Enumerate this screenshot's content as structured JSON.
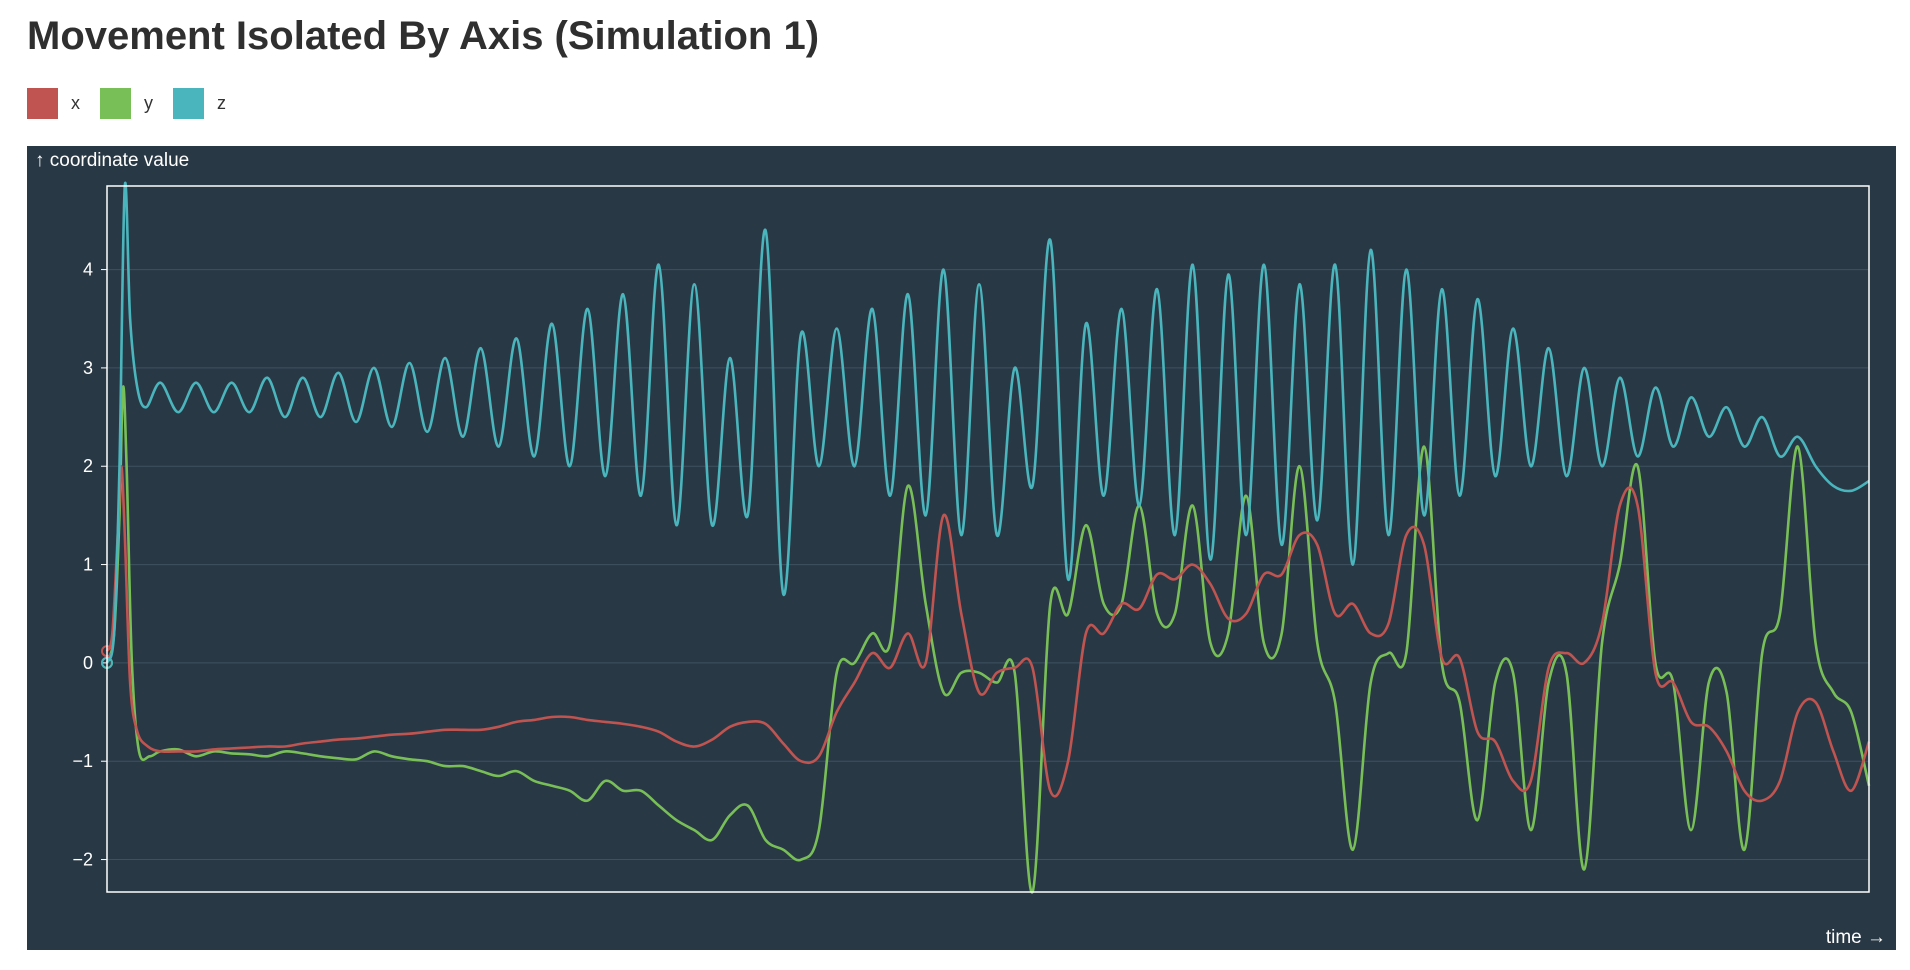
{
  "title": "Movement Isolated By Axis (Simulation 1)",
  "legend": [
    {
      "label": "x",
      "color": "#bf5451"
    },
    {
      "label": "y",
      "color": "#78bf58"
    },
    {
      "label": "z",
      "color": "#4ab5bc"
    }
  ],
  "chart_data": {
    "type": "line",
    "title": "Movement Isolated By Axis (Simulation 1)",
    "ylabel": "↑ coordinate value",
    "xlabel": "time →",
    "ylim": [
      -2.33,
      4.85
    ],
    "yticks": [
      -2,
      -1,
      0,
      1,
      2,
      3,
      4
    ],
    "ytick_labels": [
      "−2",
      "−1",
      "0",
      "1",
      "2",
      "3",
      "4"
    ],
    "grid": "horizontal",
    "background": "#293845",
    "series": [
      {
        "name": "x",
        "color": "#bf5451",
        "points": [
          [
            0,
            0.12
          ],
          [
            0.3,
            0.3
          ],
          [
            0.6,
            1.3
          ],
          [
            0.8,
            2.0
          ],
          [
            1.0,
            1.3
          ],
          [
            1.3,
            -0.2
          ],
          [
            1.7,
            -0.7
          ],
          [
            2.3,
            -0.85
          ],
          [
            3,
            -0.9
          ],
          [
            4,
            -0.9
          ],
          [
            5,
            -0.9
          ],
          [
            6,
            -0.88
          ],
          [
            7,
            -0.87
          ],
          [
            8,
            -0.86
          ],
          [
            9,
            -0.85
          ],
          [
            10,
            -0.85
          ],
          [
            11,
            -0.82
          ],
          [
            12,
            -0.8
          ],
          [
            13,
            -0.78
          ],
          [
            14,
            -0.77
          ],
          [
            15,
            -0.75
          ],
          [
            16,
            -0.73
          ],
          [
            17,
            -0.72
          ],
          [
            18,
            -0.7
          ],
          [
            19,
            -0.68
          ],
          [
            20,
            -0.68
          ],
          [
            21,
            -0.68
          ],
          [
            22,
            -0.65
          ],
          [
            23,
            -0.6
          ],
          [
            24,
            -0.58
          ],
          [
            25,
            -0.55
          ],
          [
            26,
            -0.55
          ],
          [
            27,
            -0.58
          ],
          [
            28,
            -0.6
          ],
          [
            29,
            -0.62
          ],
          [
            30,
            -0.65
          ],
          [
            31,
            -0.7
          ],
          [
            32,
            -0.8
          ],
          [
            33,
            -0.85
          ],
          [
            34,
            -0.78
          ],
          [
            35,
            -0.65
          ],
          [
            36,
            -0.6
          ],
          [
            37,
            -0.62
          ],
          [
            38,
            -0.82
          ],
          [
            39,
            -1.0
          ],
          [
            40,
            -0.95
          ],
          [
            41,
            -0.5
          ],
          [
            42,
            -0.2
          ],
          [
            43,
            0.1
          ],
          [
            44,
            -0.05
          ],
          [
            45,
            0.3
          ],
          [
            46,
            0.0
          ],
          [
            47,
            1.5
          ],
          [
            48,
            0.5
          ],
          [
            49,
            -0.3
          ],
          [
            50,
            -0.1
          ],
          [
            51,
            -0.05
          ],
          [
            52,
            -0.05
          ],
          [
            53,
            -1.3
          ],
          [
            54,
            -1.0
          ],
          [
            55,
            0.3
          ],
          [
            56,
            0.3
          ],
          [
            57,
            0.6
          ],
          [
            58,
            0.55
          ],
          [
            59,
            0.9
          ],
          [
            60,
            0.85
          ],
          [
            61,
            1.0
          ],
          [
            62,
            0.8
          ],
          [
            63,
            0.45
          ],
          [
            64,
            0.5
          ],
          [
            65,
            0.9
          ],
          [
            66,
            0.9
          ],
          [
            67,
            1.3
          ],
          [
            68,
            1.2
          ],
          [
            69,
            0.5
          ],
          [
            70,
            0.6
          ],
          [
            71,
            0.3
          ],
          [
            72,
            0.4
          ],
          [
            73,
            1.3
          ],
          [
            74,
            1.2
          ],
          [
            75,
            0.05
          ],
          [
            76,
            0.05
          ],
          [
            77,
            -0.7
          ],
          [
            78,
            -0.8
          ],
          [
            79,
            -1.2
          ],
          [
            80,
            -1.2
          ],
          [
            81,
            -0.05
          ],
          [
            82,
            0.1
          ],
          [
            83,
            0.0
          ],
          [
            84,
            0.4
          ],
          [
            85,
            1.6
          ],
          [
            86,
            1.6
          ],
          [
            87,
            -0.1
          ],
          [
            88,
            -0.2
          ],
          [
            89,
            -0.6
          ],
          [
            90,
            -0.65
          ],
          [
            91,
            -0.9
          ],
          [
            92,
            -1.3
          ],
          [
            93,
            -1.4
          ],
          [
            94,
            -1.2
          ],
          [
            95,
            -0.5
          ],
          [
            96,
            -0.4
          ],
          [
            97,
            -0.9
          ],
          [
            98,
            -1.3
          ],
          [
            99,
            -0.8
          ]
        ]
      },
      {
        "name": "y",
        "color": "#78bf58",
        "points": [
          [
            0,
            0.0
          ],
          [
            0.4,
            0.3
          ],
          [
            0.7,
            1.5
          ],
          [
            0.9,
            2.8
          ],
          [
            1.1,
            2.0
          ],
          [
            1.4,
            0.0
          ],
          [
            1.8,
            -0.9
          ],
          [
            2.4,
            -0.95
          ],
          [
            3,
            -0.9
          ],
          [
            4,
            -0.88
          ],
          [
            5,
            -0.95
          ],
          [
            6,
            -0.9
          ],
          [
            7,
            -0.92
          ],
          [
            8,
            -0.93
          ],
          [
            9,
            -0.95
          ],
          [
            10,
            -0.9
          ],
          [
            11,
            -0.92
          ],
          [
            12,
            -0.95
          ],
          [
            13,
            -0.97
          ],
          [
            14,
            -0.98
          ],
          [
            15,
            -0.9
          ],
          [
            16,
            -0.95
          ],
          [
            17,
            -0.98
          ],
          [
            18,
            -1.0
          ],
          [
            19,
            -1.05
          ],
          [
            20,
            -1.05
          ],
          [
            21,
            -1.1
          ],
          [
            22,
            -1.15
          ],
          [
            23,
            -1.1
          ],
          [
            24,
            -1.2
          ],
          [
            25,
            -1.25
          ],
          [
            26,
            -1.3
          ],
          [
            27,
            -1.4
          ],
          [
            28,
            -1.2
          ],
          [
            29,
            -1.3
          ],
          [
            30,
            -1.3
          ],
          [
            31,
            -1.45
          ],
          [
            32,
            -1.6
          ],
          [
            33,
            -1.7
          ],
          [
            34,
            -1.8
          ],
          [
            35,
            -1.55
          ],
          [
            36,
            -1.45
          ],
          [
            37,
            -1.8
          ],
          [
            38,
            -1.9
          ],
          [
            39,
            -2.0
          ],
          [
            40,
            -1.7
          ],
          [
            41,
            -0.1
          ],
          [
            42,
            0.0
          ],
          [
            43,
            0.3
          ],
          [
            44,
            0.2
          ],
          [
            45,
            1.8
          ],
          [
            46,
            0.6
          ],
          [
            47,
            -0.3
          ],
          [
            48,
            -0.1
          ],
          [
            49,
            -0.1
          ],
          [
            50,
            -0.2
          ],
          [
            51,
            -0.1
          ],
          [
            52,
            -2.33
          ],
          [
            53,
            0.6
          ],
          [
            54,
            0.5
          ],
          [
            55,
            1.4
          ],
          [
            56,
            0.6
          ],
          [
            57,
            0.6
          ],
          [
            58,
            1.6
          ],
          [
            59,
            0.5
          ],
          [
            60,
            0.5
          ],
          [
            61,
            1.6
          ],
          [
            62,
            0.2
          ],
          [
            63,
            0.3
          ],
          [
            64,
            1.7
          ],
          [
            65,
            0.2
          ],
          [
            66,
            0.3
          ],
          [
            67,
            2.0
          ],
          [
            68,
            0.2
          ],
          [
            69,
            -0.4
          ],
          [
            70,
            -1.9
          ],
          [
            71,
            -0.2
          ],
          [
            72,
            0.1
          ],
          [
            73,
            0.1
          ],
          [
            74,
            2.2
          ],
          [
            75,
            0.0
          ],
          [
            76,
            -0.4
          ],
          [
            77,
            -1.6
          ],
          [
            78,
            -0.2
          ],
          [
            79,
            -0.1
          ],
          [
            80,
            -1.7
          ],
          [
            81,
            -0.2
          ],
          [
            82,
            -0.1
          ],
          [
            83,
            -2.1
          ],
          [
            84,
            0.2
          ],
          [
            85,
            1.0
          ],
          [
            86,
            2.0
          ],
          [
            87,
            0.0
          ],
          [
            88,
            -0.2
          ],
          [
            89,
            -1.7
          ],
          [
            90,
            -0.2
          ],
          [
            91,
            -0.3
          ],
          [
            92,
            -1.9
          ],
          [
            93,
            0.1
          ],
          [
            94,
            0.5
          ],
          [
            95,
            2.2
          ],
          [
            96,
            0.2
          ],
          [
            97,
            -0.3
          ],
          [
            98,
            -0.5
          ],
          [
            99,
            -1.25
          ]
        ]
      },
      {
        "name": "z",
        "color": "#4ab5bc",
        "points": [
          [
            0,
            0.0
          ],
          [
            0.4,
            0.3
          ],
          [
            0.7,
            2.0
          ],
          [
            1.0,
            4.85
          ],
          [
            1.3,
            3.5
          ],
          [
            1.7,
            2.8
          ],
          [
            2.2,
            2.6
          ],
          [
            3,
            2.85
          ],
          [
            4,
            2.55
          ],
          [
            5,
            2.85
          ],
          [
            6,
            2.55
          ],
          [
            7,
            2.85
          ],
          [
            8,
            2.55
          ],
          [
            9,
            2.9
          ],
          [
            10,
            2.5
          ],
          [
            11,
            2.9
          ],
          [
            12,
            2.5
          ],
          [
            13,
            2.95
          ],
          [
            14,
            2.45
          ],
          [
            15,
            3.0
          ],
          [
            16,
            2.4
          ],
          [
            17,
            3.05
          ],
          [
            18,
            2.35
          ],
          [
            19,
            3.1
          ],
          [
            20,
            2.3
          ],
          [
            21,
            3.2
          ],
          [
            22,
            2.2
          ],
          [
            23,
            3.3
          ],
          [
            24,
            2.1
          ],
          [
            25,
            3.45
          ],
          [
            26,
            2.0
          ],
          [
            27,
            3.6
          ],
          [
            28,
            1.9
          ],
          [
            29,
            3.75
          ],
          [
            30,
            1.7
          ],
          [
            31,
            4.05
          ],
          [
            32,
            1.4
          ],
          [
            33,
            3.85
          ],
          [
            34,
            1.4
          ],
          [
            35,
            3.1
          ],
          [
            36,
            1.5
          ],
          [
            37,
            4.4
          ],
          [
            38,
            0.7
          ],
          [
            39,
            3.35
          ],
          [
            40,
            2.0
          ],
          [
            41,
            3.4
          ],
          [
            42,
            2.0
          ],
          [
            43,
            3.6
          ],
          [
            44,
            1.7
          ],
          [
            45,
            3.75
          ],
          [
            46,
            1.5
          ],
          [
            47,
            4.0
          ],
          [
            48,
            1.3
          ],
          [
            49,
            3.85
          ],
          [
            50,
            1.3
          ],
          [
            51,
            3.0
          ],
          [
            52,
            1.8
          ],
          [
            53,
            4.3
          ],
          [
            54,
            0.85
          ],
          [
            55,
            3.45
          ],
          [
            56,
            1.7
          ],
          [
            57,
            3.6
          ],
          [
            58,
            1.6
          ],
          [
            59,
            3.8
          ],
          [
            60,
            1.3
          ],
          [
            61,
            4.05
          ],
          [
            62,
            1.05
          ],
          [
            63,
            3.95
          ],
          [
            64,
            1.3
          ],
          [
            65,
            4.05
          ],
          [
            66,
            1.2
          ],
          [
            67,
            3.85
          ],
          [
            68,
            1.45
          ],
          [
            69,
            4.05
          ],
          [
            70,
            1.0
          ],
          [
            71,
            4.2
          ],
          [
            72,
            1.3
          ],
          [
            73,
            4.0
          ],
          [
            74,
            1.5
          ],
          [
            75,
            3.8
          ],
          [
            76,
            1.7
          ],
          [
            77,
            3.7
          ],
          [
            78,
            1.9
          ],
          [
            79,
            3.4
          ],
          [
            80,
            2.0
          ],
          [
            81,
            3.2
          ],
          [
            82,
            1.9
          ],
          [
            83,
            3.0
          ],
          [
            84,
            2.0
          ],
          [
            85,
            2.9
          ],
          [
            86,
            2.1
          ],
          [
            87,
            2.8
          ],
          [
            88,
            2.2
          ],
          [
            89,
            2.7
          ],
          [
            90,
            2.3
          ],
          [
            91,
            2.6
          ],
          [
            92,
            2.2
          ],
          [
            93,
            2.5
          ],
          [
            94,
            2.1
          ],
          [
            95,
            2.3
          ],
          [
            96,
            2.0
          ],
          [
            97,
            1.8
          ],
          [
            98,
            1.75
          ],
          [
            99,
            1.85
          ]
        ]
      }
    ]
  }
}
